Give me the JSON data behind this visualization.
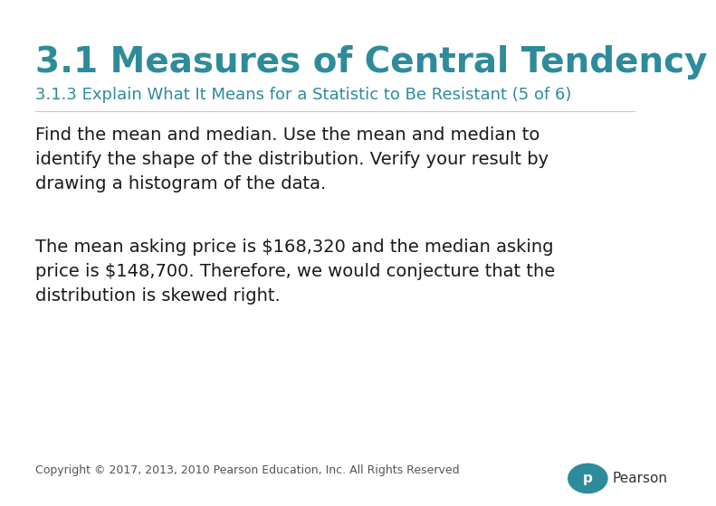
{
  "background_color": "#ffffff",
  "title_text": "3.1 Measures of Central Tendency",
  "title_color": "#2E8B9A",
  "title_fontsize": 28,
  "subtitle_text": "3.1.3 Explain What It Means for a Statistic to Be Resistant (5 of 6)",
  "subtitle_color": "#2E8B9A",
  "subtitle_fontsize": 13,
  "body1_wrapped": "Find the mean and median. Use the mean and median to\nidentify the shape of the distribution. Verify your result by\ndrawing a histogram of the data.",
  "body2_wrapped": "The mean asking price is $168,320 and the median asking\nprice is $148,700. Therefore, we would conjecture that the\ndistribution is skewed right.",
  "body_fontsize": 14,
  "body_color": "#1a1a1a",
  "footer_text": "Copyright © 2017, 2013, 2010 Pearson Education, Inc. All Rights Reserved",
  "footer_color": "#555555",
  "footer_fontsize": 9,
  "pearson_text": "Pearson",
  "pearson_color": "#333333",
  "pearson_circle_color": "#2E8B9A",
  "pearson_p_color": "#ffffff"
}
